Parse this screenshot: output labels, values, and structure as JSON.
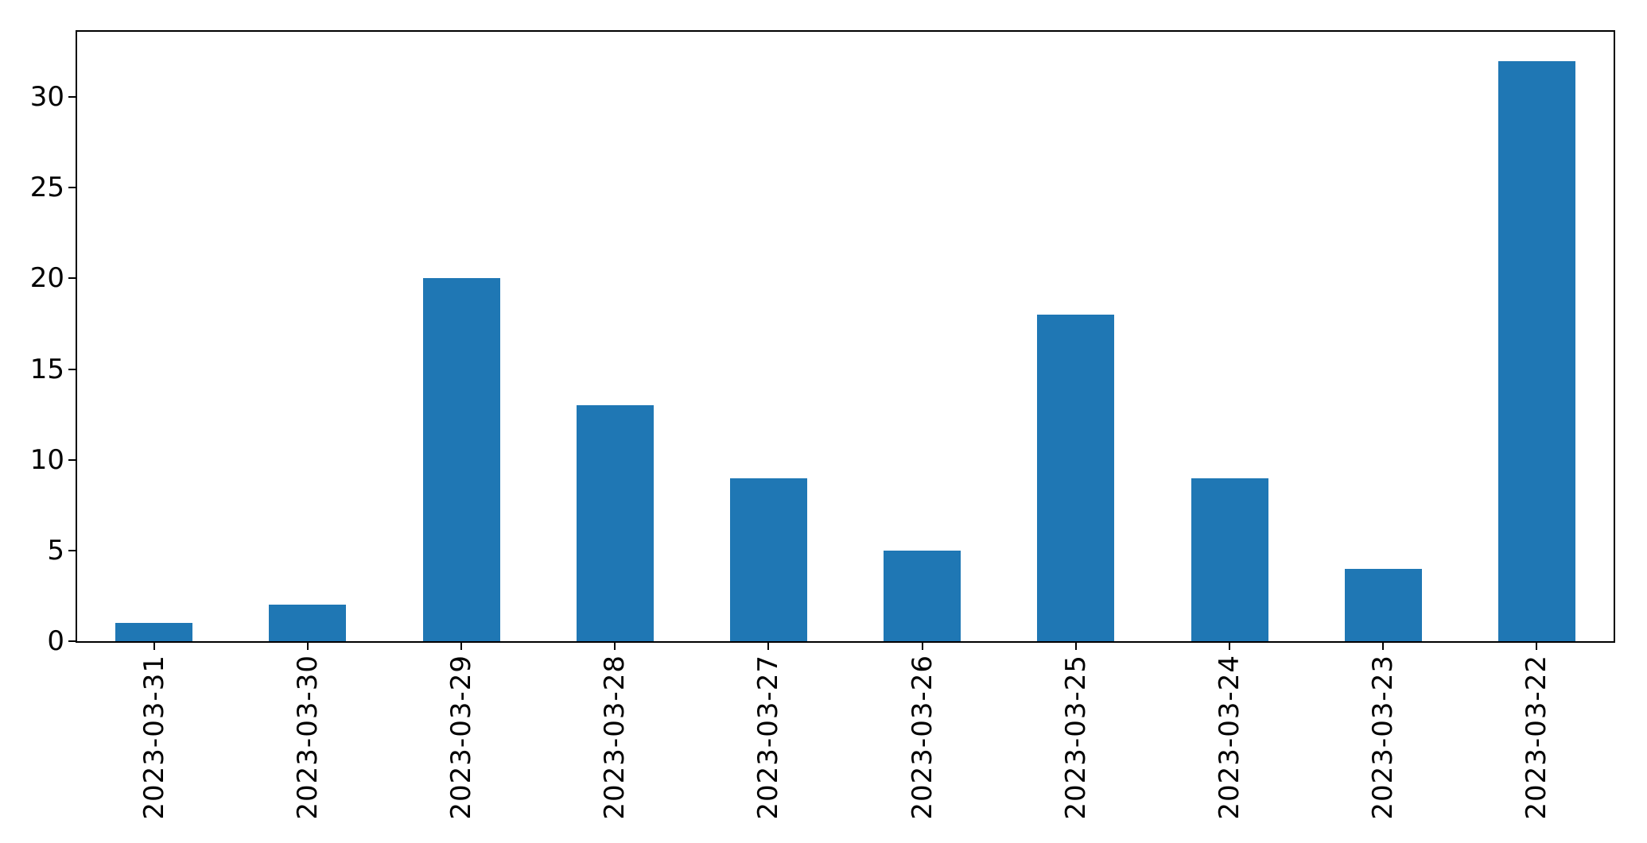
{
  "chart_data": {
    "type": "bar",
    "title": "",
    "xlabel": "",
    "ylabel": "",
    "categories": [
      "2023-03-31",
      "2023-03-30",
      "2023-03-29",
      "2023-03-28",
      "2023-03-27",
      "2023-03-26",
      "2023-03-25",
      "2023-03-24",
      "2023-03-23",
      "2023-03-22"
    ],
    "values": [
      1,
      2,
      20,
      13,
      9,
      5,
      18,
      9,
      4,
      32
    ],
    "yticks": [
      0,
      5,
      10,
      15,
      20,
      25,
      30
    ],
    "ylim": [
      0,
      33.6
    ],
    "bar_color": "#1f77b4",
    "axis_color": "#000000",
    "background_color": "#ffffff",
    "grid": false,
    "legend_position": "none",
    "x_tick_rotation_deg": 90
  }
}
